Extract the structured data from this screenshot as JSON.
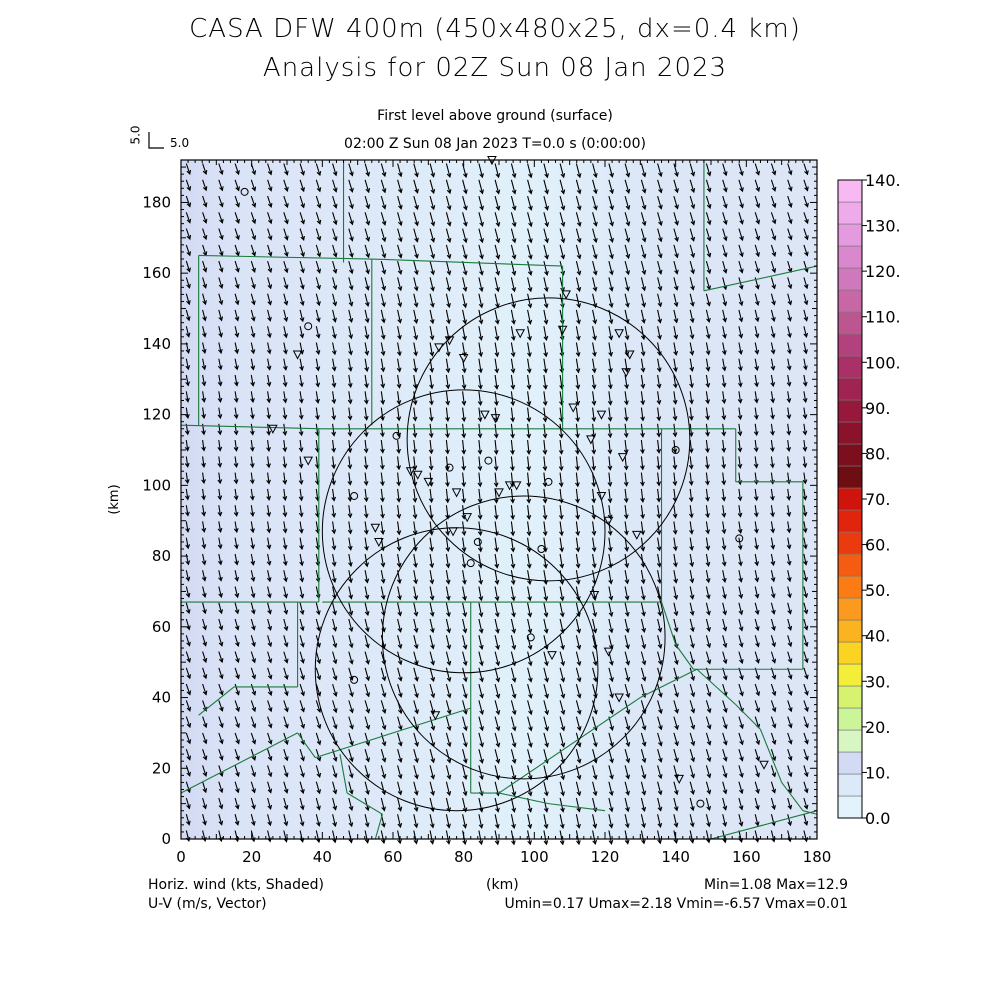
{
  "header": {
    "title_line1": "CASA DFW 400m (450x480x25, dx=0.4 km)",
    "title_line2": "Analysis for 02Z Sun 08 Jan 2023",
    "subtitle_line1": "First level above ground (surface)",
    "subtitle_line2": "02:00 Z Sun 08 Jan 2023    T=0.0 s (0:00:00)",
    "ref_vector_label": "5.0",
    "ref_vector_label_rot": "5.0"
  },
  "footer": {
    "left_line1": "Horiz. wind (kts, Shaded)",
    "left_line2": "U-V (m/s, Vector)",
    "center": "(km)",
    "right_line1": "Min=1.08 Max=12.9",
    "right_line2": "Umin=0.17 Umax=2.18 Vmin=-6.57 Vmax=0.01"
  },
  "chart_data": {
    "type": "heatmap",
    "xlabel": "(km)",
    "ylabel": "(km)",
    "xlim": [
      0,
      180
    ],
    "ylim": [
      0,
      192
    ],
    "xticks": [
      0,
      20,
      40,
      60,
      80,
      100,
      120,
      140,
      160,
      180
    ],
    "yticks": [
      0,
      20,
      40,
      60,
      80,
      100,
      120,
      140,
      160,
      180
    ],
    "field": "Horiz. wind (kts)",
    "field_min": 1.08,
    "field_max": 12.9,
    "u_min": 0.17,
    "u_max": 2.18,
    "v_min": -6.57,
    "v_max": 0.01,
    "colorbar": {
      "labels": [
        "0.0",
        "10.",
        "20.",
        "30.",
        "40.",
        "50.",
        "60.",
        "70.",
        "80.",
        "90.",
        "100.",
        "110.",
        "120.",
        "130.",
        "140."
      ],
      "colors": [
        "#e2f3fb",
        "#dce9f8",
        "#d3daf4",
        "#d8f6c2",
        "#ccf59a",
        "#d7f26e",
        "#f2ee3a",
        "#fbd322",
        "#fbb420",
        "#fb9a1e",
        "#fb7b14",
        "#f45c12",
        "#ea3b0f",
        "#e0240d",
        "#cf140b",
        "#6e0d12",
        "#7c0e1d",
        "#8a122b",
        "#96193c",
        "#9f2452",
        "#a93168",
        "#b2427e",
        "#bc5691",
        "#c767a6",
        "#d078bc",
        "#da88cd",
        "#e49ade",
        "#efaaea",
        "#f8b8f4"
      ]
    },
    "range_rings": [
      {
        "cx": 78,
        "cy": 48,
        "r": 40
      },
      {
        "cx": 80,
        "cy": 87,
        "r": 40
      },
      {
        "cx": 97,
        "cy": 57,
        "r": 40
      },
      {
        "cx": 104,
        "cy": 113,
        "r": 40
      }
    ],
    "stations_circle": [
      [
        18,
        183
      ],
      [
        36,
        145
      ],
      [
        49,
        97
      ],
      [
        76,
        105
      ],
      [
        61,
        114
      ],
      [
        87,
        107
      ],
      [
        104,
        101
      ],
      [
        102,
        82
      ],
      [
        84,
        84
      ],
      [
        82,
        78
      ],
      [
        99,
        57
      ],
      [
        49,
        45
      ],
      [
        140,
        110
      ],
      [
        158,
        85
      ],
      [
        147,
        10
      ]
    ],
    "stations_triangle": [
      [
        88,
        192
      ],
      [
        33,
        137
      ],
      [
        26,
        116
      ],
      [
        36,
        107
      ],
      [
        73,
        139
      ],
      [
        76,
        141
      ],
      [
        80,
        136
      ],
      [
        86,
        120
      ],
      [
        89,
        119
      ],
      [
        96,
        143
      ],
      [
        109,
        154
      ],
      [
        108,
        144
      ],
      [
        124,
        143
      ],
      [
        127,
        137
      ],
      [
        126,
        132
      ],
      [
        111,
        122
      ],
      [
        119,
        120
      ],
      [
        116,
        113
      ],
      [
        125,
        108
      ],
      [
        119,
        97
      ],
      [
        121,
        90
      ],
      [
        129,
        86
      ],
      [
        117,
        69
      ],
      [
        121,
        53
      ],
      [
        105,
        52
      ],
      [
        124,
        40
      ],
      [
        72,
        35
      ],
      [
        141,
        17
      ],
      [
        165,
        21
      ],
      [
        55,
        88
      ],
      [
        56,
        84
      ],
      [
        65,
        104
      ],
      [
        67,
        103
      ],
      [
        70,
        101
      ],
      [
        78,
        98
      ],
      [
        81,
        91
      ],
      [
        77,
        87
      ],
      [
        90,
        98
      ],
      [
        93,
        100
      ],
      [
        95,
        100
      ]
    ],
    "county_lines": [
      [
        [
          46,
          192
        ],
        [
          46,
          163
        ]
      ],
      [
        [
          148,
          192
        ],
        [
          148,
          155
        ]
      ],
      [
        [
          148,
          155
        ],
        [
          180,
          162
        ]
      ],
      [
        [
          5,
          165
        ],
        [
          54,
          164
        ]
      ],
      [
        [
          54,
          164
        ],
        [
          108,
          162
        ]
      ],
      [
        [
          5,
          165
        ],
        [
          5,
          117
        ]
      ],
      [
        [
          54,
          164
        ],
        [
          54,
          117
        ]
      ],
      [
        [
          0,
          117
        ],
        [
          40,
          116
        ]
      ],
      [
        [
          40,
          116
        ],
        [
          157,
          116
        ]
      ],
      [
        [
          108,
          162
        ],
        [
          108,
          116
        ]
      ],
      [
        [
          157,
          116
        ],
        [
          157,
          101
        ]
      ],
      [
        [
          157,
          101
        ],
        [
          176,
          101
        ]
      ],
      [
        [
          176,
          101
        ],
        [
          176,
          48
        ]
      ],
      [
        [
          176,
          48
        ],
        [
          145,
          48
        ]
      ],
      [
        [
          39,
          116
        ],
        [
          39,
          67
        ]
      ],
      [
        [
          39,
          67
        ],
        [
          0,
          67
        ]
      ],
      [
        [
          0,
          67
        ],
        [
          0,
          35
        ]
      ],
      [
        [
          145,
          48
        ],
        [
          140,
          55
        ]
      ],
      [
        [
          140,
          55
        ],
        [
          136,
          67
        ]
      ],
      [
        [
          136,
          67
        ],
        [
          40,
          67
        ]
      ],
      [
        [
          136,
          116
        ],
        [
          136,
          67
        ]
      ],
      [
        [
          82,
          67
        ],
        [
          82,
          13
        ]
      ],
      [
        [
          82,
          13
        ],
        [
          90,
          13
        ]
      ],
      [
        [
          90,
          13
        ],
        [
          130,
          40
        ]
      ],
      [
        [
          130,
          40
        ],
        [
          146,
          48
        ]
      ],
      [
        [
          33,
          67
        ],
        [
          33,
          43
        ]
      ],
      [
        [
          33,
          43
        ],
        [
          15,
          43
        ]
      ],
      [
        [
          15,
          43
        ],
        [
          5,
          35
        ]
      ],
      [
        [
          33,
          30
        ],
        [
          0,
          13
        ]
      ],
      [
        [
          33,
          30
        ],
        [
          38,
          23
        ]
      ],
      [
        [
          38,
          23
        ],
        [
          82,
          37
        ]
      ],
      [
        [
          45,
          24
        ],
        [
          47,
          13
        ]
      ],
      [
        [
          47,
          13
        ],
        [
          57,
          7
        ]
      ],
      [
        [
          57,
          7
        ],
        [
          55,
          0
        ]
      ],
      [
        [
          90,
          13
        ],
        [
          104,
          10
        ]
      ],
      [
        [
          104,
          10
        ],
        [
          120,
          8
        ]
      ],
      [
        [
          146,
          48
        ],
        [
          157,
          38
        ]
      ],
      [
        [
          157,
          38
        ],
        [
          164,
          31
        ]
      ],
      [
        [
          164,
          31
        ],
        [
          170,
          16
        ]
      ],
      [
        [
          170,
          16
        ],
        [
          176,
          8
        ]
      ],
      [
        [
          176,
          8
        ],
        [
          180,
          7
        ]
      ],
      [
        [
          150,
          0
        ],
        [
          180,
          8
        ]
      ]
    ],
    "wind_grid_spacing_km": 4.6,
    "wind_vector_uv": [
      0.9,
      -4.3
    ]
  }
}
